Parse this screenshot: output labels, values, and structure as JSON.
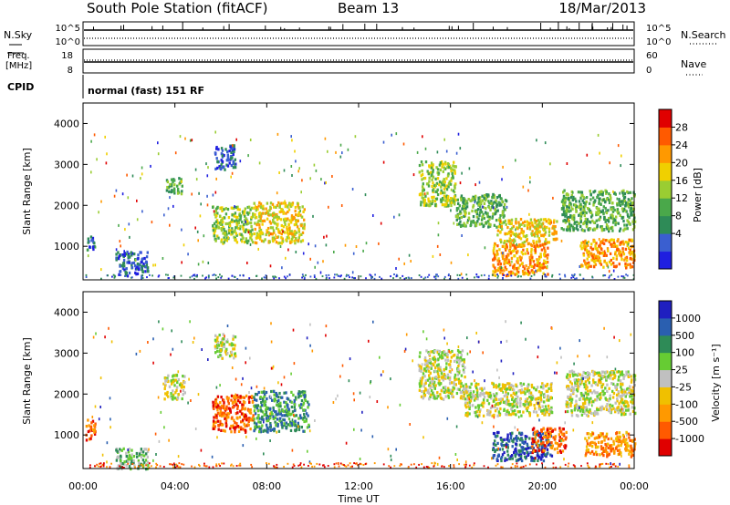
{
  "header": {
    "station": "South Pole Station (fitACF)",
    "beam": "Beam 13",
    "date": "18/Mar/2013"
  },
  "panels": {
    "nsky": {
      "left_label": "N.Sky",
      "right_label": "N.Search",
      "left_ticks": [
        "10^5",
        "10^0"
      ],
      "right_ticks": [
        "10^5",
        "10^0"
      ]
    },
    "freq": {
      "left_label_1": "Freq.",
      "left_label_2": "[MHz]",
      "left_ticks": [
        "18",
        "8"
      ],
      "right_label": "Nave",
      "right_ticks": [
        "60",
        "0"
      ]
    },
    "cpid": {
      "label": "CPID",
      "text": "normal (fast) 151 RF"
    }
  },
  "colors": {
    "power": [
      "#1f1fe0",
      "#3a5fd0",
      "#2e8b57",
      "#4aa84a",
      "#9acd32",
      "#f0d000",
      "#ff9900",
      "#ff5a00",
      "#e00000"
    ],
    "velocity": [
      "#e00000",
      "#ff5a00",
      "#ff9900",
      "#f0c000",
      "#c0c0c0",
      "#66cc33",
      "#2e8b57",
      "#2a5fb0",
      "#1f1fc0"
    ],
    "ground_scatter": "#c0c0c0"
  },
  "chart_data": [
    {
      "type": "heatmap",
      "name": "power",
      "ylabel": "Slant Range [km]",
      "xlabel": "",
      "colorbar_label": "Power [dB]",
      "colorbar_ticks": [
        "28",
        "24",
        "20",
        "16",
        "12",
        "8",
        "4"
      ],
      "y_ticks": [
        1000,
        2000,
        3000,
        4000
      ],
      "ylim": [
        180,
        4500
      ],
      "xlim": [
        0,
        24
      ],
      "blobs": [
        {
          "t0": 0.1,
          "t1": 0.45,
          "r0": 900,
          "r1": 1300,
          "level": 1
        },
        {
          "t0": 1.4,
          "t1": 2.8,
          "r0": 300,
          "r1": 900,
          "level": 1
        },
        {
          "t0": 3.6,
          "t1": 4.3,
          "r0": 2300,
          "r1": 2700,
          "level": 3
        },
        {
          "t0": 5.7,
          "t1": 6.6,
          "r0": 2900,
          "r1": 3500,
          "level": 1
        },
        {
          "t0": 5.6,
          "t1": 7.4,
          "r0": 1100,
          "r1": 2000,
          "level": 4
        },
        {
          "t0": 7.4,
          "t1": 9.6,
          "r0": 1100,
          "r1": 2100,
          "level": 5
        },
        {
          "t0": 14.6,
          "t1": 16.2,
          "r0": 2000,
          "r1": 3100,
          "level": 4
        },
        {
          "t0": 16.2,
          "t1": 18.4,
          "r0": 1500,
          "r1": 2300,
          "level": 3
        },
        {
          "t0": 18.0,
          "t1": 20.6,
          "r0": 1100,
          "r1": 1700,
          "level": 5
        },
        {
          "t0": 17.8,
          "t1": 20.2,
          "r0": 300,
          "r1": 1100,
          "level": 6
        },
        {
          "t0": 20.8,
          "t1": 24.0,
          "r0": 1400,
          "r1": 2400,
          "level": 3
        },
        {
          "t0": 21.6,
          "t1": 24.0,
          "r0": 500,
          "r1": 1200,
          "level": 6
        }
      ]
    },
    {
      "type": "heatmap",
      "name": "velocity",
      "ylabel": "Slant Range [km]",
      "xlabel": "Time UT",
      "colorbar_label": "Velocity [m s⁻¹]",
      "colorbar_ticks": [
        "1000",
        "500",
        "100",
        "25",
        "-25",
        "-100",
        "-500",
        "-1000"
      ],
      "y_ticks": [
        1000,
        2000,
        3000,
        4000
      ],
      "ylim": [
        180,
        4500
      ],
      "xlim": [
        0,
        24
      ],
      "x_ticks": [
        "00:00",
        "04:00",
        "08:00",
        "12:00",
        "16:00",
        "20:00",
        "00:00"
      ],
      "blobs": [
        {
          "t0": 0.1,
          "t1": 0.5,
          "r0": 900,
          "r1": 1400,
          "level": 1
        },
        {
          "t0": 1.4,
          "t1": 2.8,
          "r0": 200,
          "r1": 700,
          "level": 5
        },
        {
          "t0": 3.5,
          "t1": 4.4,
          "r0": 1900,
          "r1": 2500,
          "level": 4
        },
        {
          "t0": 5.7,
          "t1": 6.6,
          "r0": 2900,
          "r1": 3500,
          "level": 4
        },
        {
          "t0": 5.6,
          "t1": 7.4,
          "r0": 1100,
          "r1": 2000,
          "level": 1
        },
        {
          "t0": 7.4,
          "t1": 9.8,
          "r0": 1100,
          "r1": 2100,
          "level": 6
        },
        {
          "t0": 14.6,
          "t1": 16.6,
          "r0": 1900,
          "r1": 3100,
          "level": 4
        },
        {
          "t0": 16.6,
          "t1": 20.4,
          "r0": 1500,
          "r1": 2300,
          "level": 4
        },
        {
          "t0": 17.8,
          "t1": 20.4,
          "r0": 400,
          "r1": 1100,
          "level": 7
        },
        {
          "t0": 19.5,
          "t1": 21.0,
          "r0": 600,
          "r1": 1200,
          "level": 1
        },
        {
          "t0": 21.0,
          "t1": 24.0,
          "r0": 1500,
          "r1": 2600,
          "level": 4
        },
        {
          "t0": 21.8,
          "t1": 24.0,
          "r0": 500,
          "r1": 1100,
          "level": 2
        }
      ]
    }
  ]
}
